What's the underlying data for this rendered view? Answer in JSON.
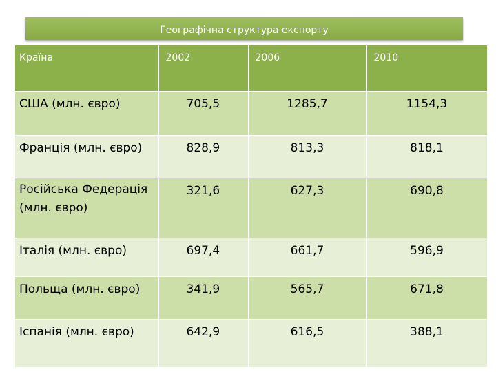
{
  "title": "Географічна структура експорту",
  "header": {
    "country": "Країна",
    "y2002": "2002",
    "y2006": "2006",
    "y2010": "2010"
  },
  "rows": [
    {
      "country": "США (млн. євро)",
      "v2002": "705,5",
      "v2006": "1285,7",
      "v2010": "1154,3"
    },
    {
      "country": "Франція (млн. євро)",
      "v2002": "828,9",
      "v2006": "813,3",
      "v2010": "818,1"
    },
    {
      "country": "Російська Федерація (млн. євро)",
      "v2002": "321,6",
      "v2006": "627,3",
      "v2010": "690,8"
    },
    {
      "country": "Італія (млн. євро)",
      "v2002": "697,4",
      "v2006": "661,7",
      "v2010": "596,9"
    },
    {
      "country": "Польща (млн. євро)",
      "v2002": "341,9",
      "v2006": "565,7",
      "v2010": "671,8"
    },
    {
      "country": "Іспанія (млн. євро)",
      "v2002": "642,9",
      "v2006": "616,5",
      "v2010": "388,1"
    }
  ]
}
